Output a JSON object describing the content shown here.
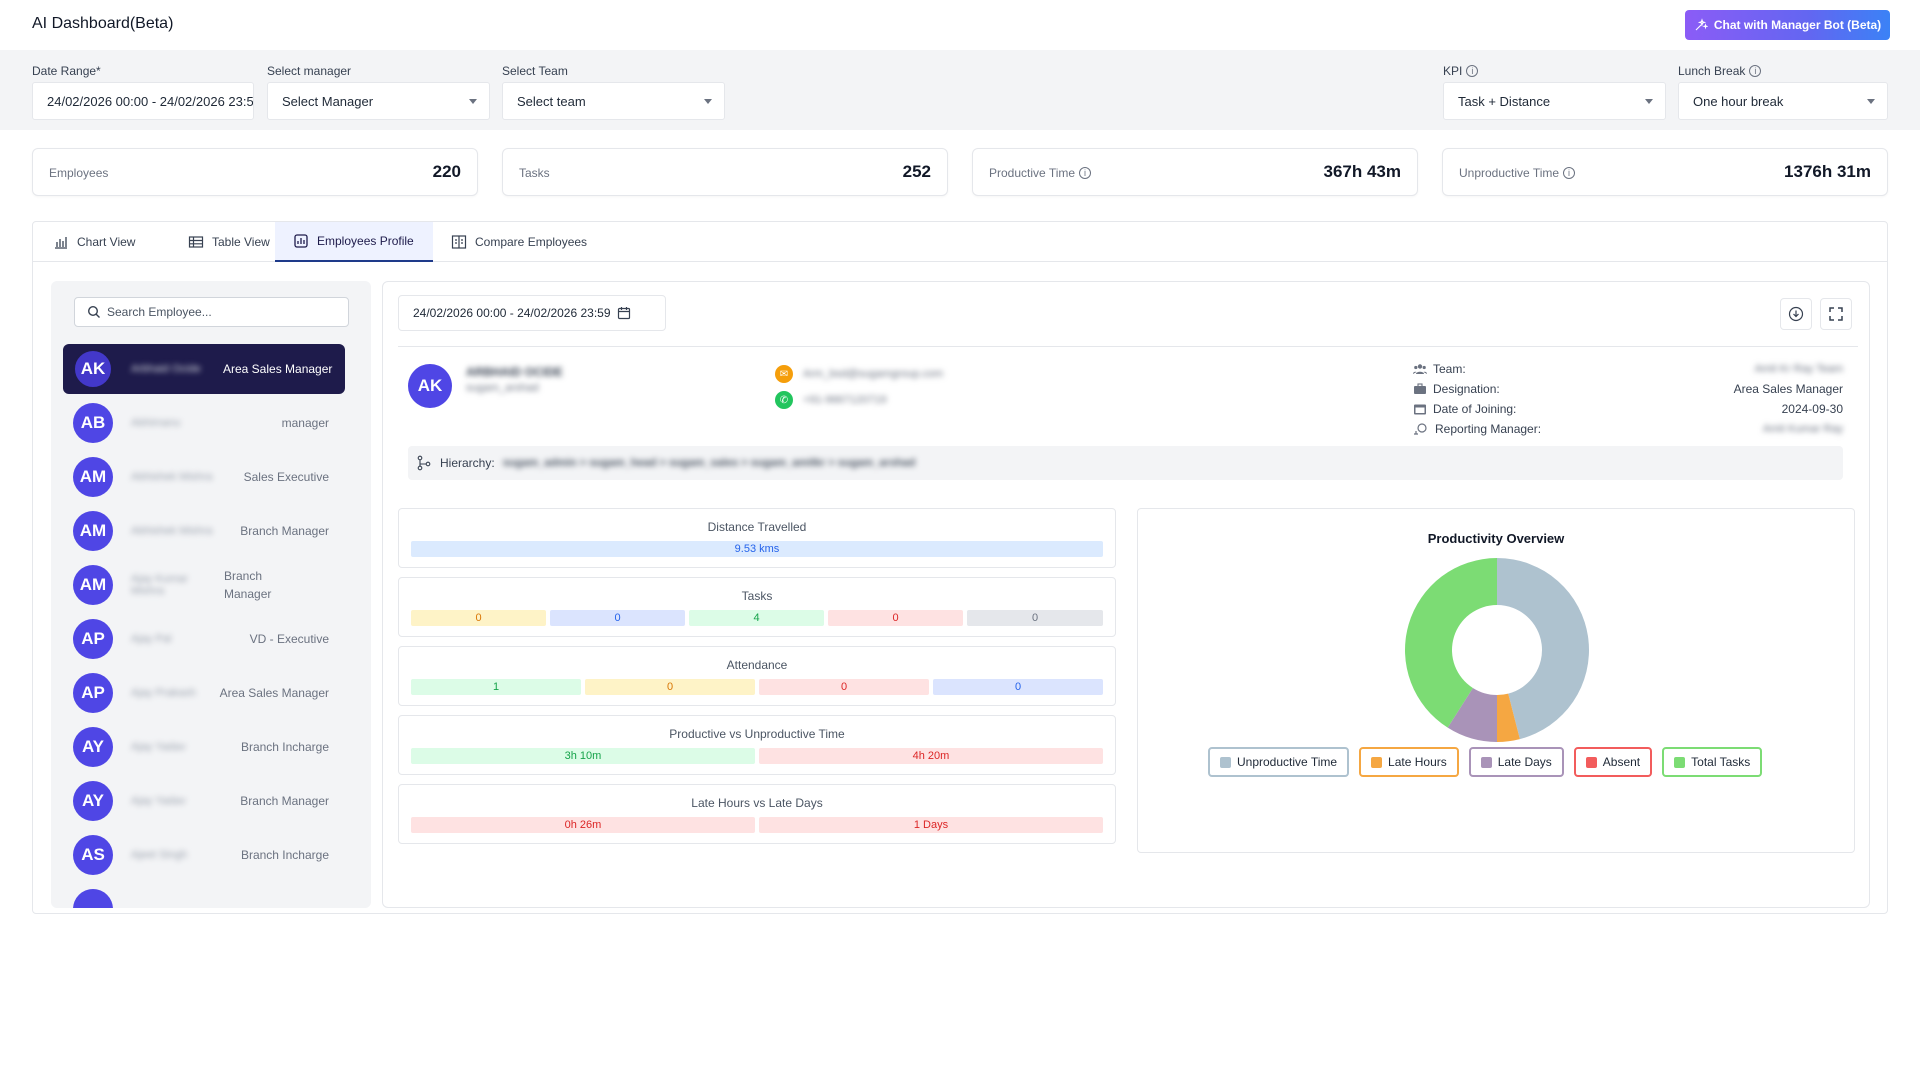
{
  "app": {
    "title": "AI Dashboard(Beta)",
    "bot_button": "Chat with Manager Bot (Beta)"
  },
  "filters": {
    "date_range": {
      "label": "Date Range*",
      "value": "24/02/2026 00:00 - 24/02/2026 23:59"
    },
    "manager": {
      "label": "Select manager",
      "value": "Select Manager"
    },
    "team": {
      "label": "Select Team",
      "value": "Select team"
    },
    "kpi": {
      "label": "KPI",
      "value": "Task + Distance"
    },
    "lunch": {
      "label": "Lunch Break",
      "value": "One hour break"
    }
  },
  "stats": [
    {
      "label": "Employees",
      "value": "220"
    },
    {
      "label": "Tasks",
      "value": "252"
    },
    {
      "label": "Productive Time",
      "value": "367h 43m"
    },
    {
      "label": "Unproductive Time",
      "value": "1376h 31m"
    }
  ],
  "tabs": [
    "Chart View",
    "Table View",
    "Employees Profile",
    "Compare Employees"
  ],
  "active_tab": "Employees Profile",
  "search": {
    "placeholder": "Search Employee..."
  },
  "employees": [
    {
      "initials": "AK",
      "name": "Arbhaid Ocide",
      "role": "Area Sales Manager",
      "active": true
    },
    {
      "initials": "AB",
      "name": "Abhimanu",
      "role": "manager"
    },
    {
      "initials": "AM",
      "name": "Abhishek Mishra",
      "role": "Sales Executive"
    },
    {
      "initials": "AM",
      "name": "Abhishek Mishra",
      "role": "Branch Manager"
    },
    {
      "initials": "AM",
      "name": "Ajay Kumar Mishra",
      "role": "Branch Manager"
    },
    {
      "initials": "AP",
      "name": "Ajay Pal",
      "role": "VD - Executive"
    },
    {
      "initials": "AP",
      "name": "Ajay Prakash",
      "role": "Area Sales Manager"
    },
    {
      "initials": "AY",
      "name": "Ajay Yadav",
      "role": "Branch Incharge"
    },
    {
      "initials": "AY",
      "name": "Ajay Yadav",
      "role": "Branch Manager"
    },
    {
      "initials": "AS",
      "name": "Ajeet Singh",
      "role": "Branch Incharge"
    }
  ],
  "profile": {
    "date_range": "24/02/2026 00:00 - 24/02/2026 23:59",
    "initials": "AK",
    "name": "ARBHAID OCIDE",
    "username": "sugam_arshad",
    "email": "Arm_bsd@sugamgroup.com",
    "phone": "+91-9667120719",
    "team_label": "Team:",
    "team_value": "Amit Kr Ray Team",
    "designation_label": "Designation:",
    "designation_value": "Area Sales Manager",
    "doj_label": "Date of Joining:",
    "doj_value": "2024-09-30",
    "reporting_label": "Reporting Manager:",
    "reporting_value": "Amit Kumar Ray",
    "hierarchy_label": "Hierarchy:",
    "hierarchy_value": "sugam_admin > sugam_head > sugam_sales > sugam_amitkr > sugam_arshad"
  },
  "metrics": {
    "distance": {
      "title": "Distance Travelled",
      "value": "9.53 kms"
    },
    "tasks": {
      "title": "Tasks",
      "values": [
        "0",
        "0",
        "4",
        "0",
        "0"
      ]
    },
    "attendance": {
      "title": "Attendance",
      "values": [
        "1",
        "0",
        "0",
        "0"
      ]
    },
    "productive": {
      "title": "Productive vs Unproductive Time",
      "productive": "3h 10m",
      "unproductive": "4h 20m"
    },
    "late": {
      "title": "Late Hours vs Late Days",
      "hours": "0h 26m",
      "days": "1 Days"
    }
  },
  "chart_data": {
    "type": "pie",
    "title": "Productivity Overview",
    "categories": [
      "Unproductive Time",
      "Late Hours",
      "Late Days",
      "Absent",
      "Total Tasks"
    ],
    "values": [
      46,
      4,
      9,
      0,
      41
    ],
    "colors": [
      "#aec2cf",
      "#f5a742",
      "#a993b8",
      "#f25c5c",
      "#7cdc74"
    ],
    "legend_position": "bottom"
  }
}
